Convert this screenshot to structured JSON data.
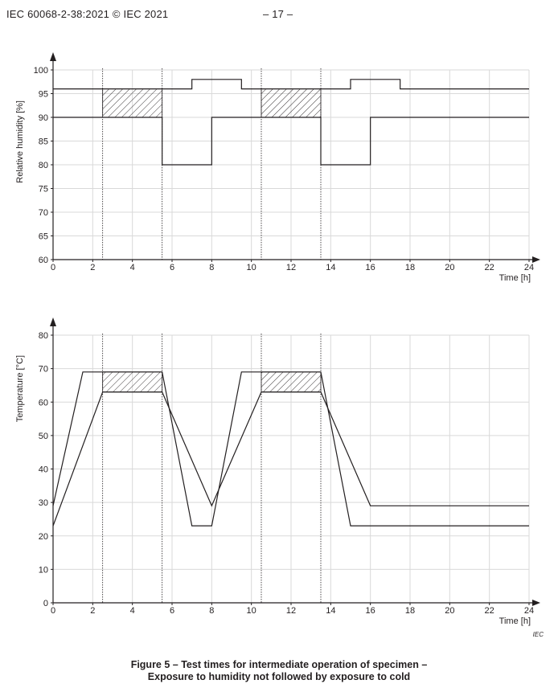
{
  "header": {
    "document_id": "IEC 60068-2-38:2021 © IEC 2021",
    "page_number": "– 17 –"
  },
  "chart_data": [
    {
      "type": "line",
      "ylabel": "Relative humidity [%]",
      "xlabel": "Time [h]",
      "xlim": [
        0,
        24
      ],
      "ylim": [
        60,
        100
      ],
      "x_ticks": [
        0,
        2,
        4,
        6,
        8,
        10,
        12,
        14,
        16,
        18,
        20,
        22,
        24
      ],
      "y_ticks": [
        60,
        65,
        70,
        75,
        80,
        85,
        90,
        95,
        100
      ],
      "grid": true,
      "series": [
        {
          "x": [
            0,
            7,
            7,
            9.5,
            9.5,
            15,
            15,
            17.5,
            17.5,
            24
          ],
          "y": [
            96,
            96,
            98,
            98,
            96,
            96,
            98,
            98,
            96,
            96
          ]
        },
        {
          "x": [
            0,
            5.5,
            5.5,
            8,
            8,
            13.5,
            13.5,
            16,
            16,
            24
          ],
          "y": [
            90,
            90,
            80,
            80,
            90,
            90,
            80,
            80,
            90,
            90
          ]
        }
      ],
      "hatched_regions": [
        {
          "x": [
            2.5,
            5.5
          ],
          "y": [
            90,
            96
          ]
        },
        {
          "x": [
            10.5,
            13.5
          ],
          "y": [
            90,
            96
          ]
        }
      ],
      "vertical_dotted_lines": [
        2.5,
        5.5,
        10.5,
        13.5
      ]
    },
    {
      "type": "line",
      "ylabel": "Temperature [°C]",
      "xlabel": "Time [h]",
      "xlim": [
        0,
        24
      ],
      "ylim": [
        0,
        80
      ],
      "x_ticks": [
        0,
        2,
        4,
        6,
        8,
        10,
        12,
        14,
        16,
        18,
        20,
        22,
        24
      ],
      "y_ticks": [
        0,
        10,
        20,
        30,
        40,
        50,
        60,
        70,
        80
      ],
      "grid": true,
      "series": [
        {
          "x": [
            0,
            1.5,
            5.5,
            7,
            8,
            9.5,
            13.5,
            15,
            24
          ],
          "y": [
            29,
            69,
            69,
            23,
            23,
            69,
            69,
            23,
            23
          ]
        },
        {
          "x": [
            0,
            2.5,
            5.5,
            8,
            10.5,
            13.5,
            16,
            24
          ],
          "y": [
            23,
            63,
            63,
            29,
            63,
            63,
            29,
            29
          ]
        }
      ],
      "hatched_regions": [
        {
          "x": [
            2.5,
            5.5
          ],
          "y": [
            63,
            69
          ]
        },
        {
          "x": [
            10.5,
            13.5
          ],
          "y": [
            63,
            69
          ]
        }
      ],
      "vertical_dotted_lines": [
        2.5,
        5.5,
        10.5,
        13.5
      ],
      "annotation": "IEC"
    }
  ],
  "caption": {
    "line1": "Figure 5 – Test times for intermediate operation of specimen –",
    "line2": "Exposure to humidity not followed by exposure to cold"
  }
}
